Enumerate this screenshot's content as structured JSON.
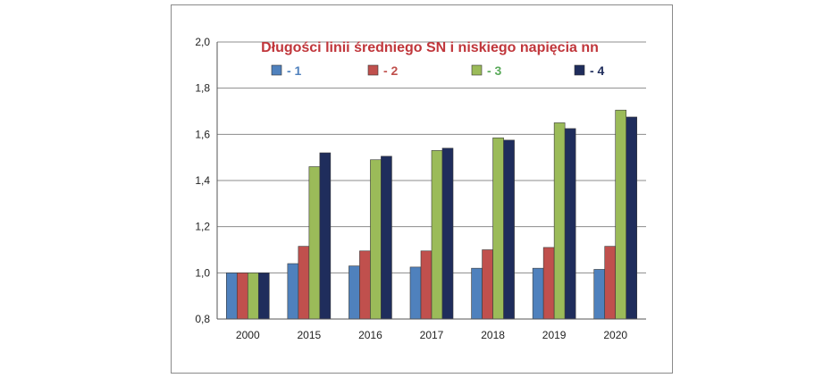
{
  "chart_data": {
    "type": "bar",
    "title": "Długości linii średniego SN i niskiego napięcia nn",
    "xlabel": "",
    "ylabel": "",
    "categories": [
      "2000",
      "2015",
      "2016",
      "2017",
      "2018",
      "2019",
      "2020"
    ],
    "ylim": [
      0.8,
      2.0
    ],
    "yticks": [
      "0,8",
      "1,0",
      "1,2",
      "1,4",
      "1,6",
      "1,8",
      "2,0"
    ],
    "grid": true,
    "legend_position": "top",
    "series": [
      {
        "name": "- 1",
        "color": "#4f81bd",
        "values": [
          1.0,
          1.04,
          1.03,
          1.025,
          1.02,
          1.02,
          1.015
        ]
      },
      {
        "name": "- 2",
        "color": "#c0504d",
        "values": [
          1.0,
          1.115,
          1.095,
          1.095,
          1.1,
          1.11,
          1.115
        ]
      },
      {
        "name": "- 3",
        "color": "#9bbb59",
        "values": [
          1.0,
          1.46,
          1.49,
          1.53,
          1.585,
          1.65,
          1.705
        ]
      },
      {
        "name": "- 4",
        "color": "#1f2d5c",
        "values": [
          1.0,
          1.52,
          1.505,
          1.54,
          1.575,
          1.625,
          1.675
        ]
      }
    ],
    "legend_label_colors": [
      "#4f81bd",
      "#c0504d",
      "#5aaa5a",
      "#1f2d5c"
    ],
    "title_color": "#c0363b"
  }
}
